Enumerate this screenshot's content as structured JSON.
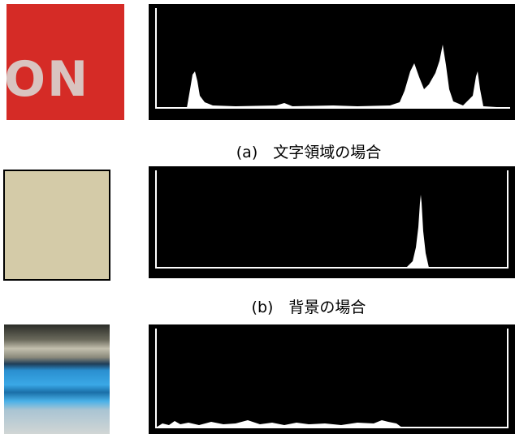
{
  "figure": {
    "patch_a_text": "ON",
    "caption_a": "(a)　文字領域の場合",
    "caption_b": "(b)　背景の場合"
  }
}
